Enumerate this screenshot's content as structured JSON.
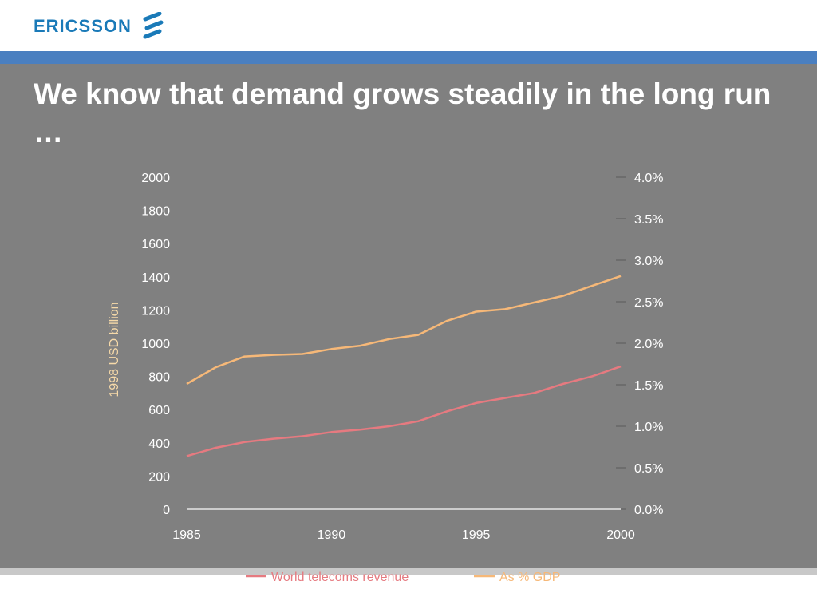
{
  "brand": {
    "name": "ERICSSON",
    "icon": "ericsson-logo-icon",
    "color": "#1a7ab8"
  },
  "slide": {
    "title": "We know that demand grows steadily in the long run …",
    "background": "#808080",
    "accent_bar": "#4a7fc0"
  },
  "chart_data": {
    "type": "line",
    "title": "",
    "xlabel": "",
    "ylabel": "1998 USD billion",
    "y2label": "",
    "x": [
      1985,
      1986,
      1987,
      1988,
      1989,
      1990,
      1991,
      1992,
      1993,
      1994,
      1995,
      1996,
      1997,
      1998,
      1999,
      2000
    ],
    "xticks": [
      "1985",
      "1990",
      "1995",
      "2000"
    ],
    "ylim": [
      0,
      2000
    ],
    "yticks": [
      "0",
      "200",
      "400",
      "600",
      "800",
      "1000",
      "1200",
      "1400",
      "1600",
      "1800",
      "2000"
    ],
    "y2lim": [
      0,
      4.0
    ],
    "y2ticks": [
      "0.0%",
      "0.5%",
      "1.0%",
      "1.5%",
      "2.0%",
      "2.5%",
      "3.0%",
      "3.5%",
      "4.0%"
    ],
    "grid": false,
    "legend_position": "bottom",
    "series": [
      {
        "name": "World telecoms revenue",
        "axis": "left",
        "color": "#e67a80",
        "values": [
          320,
          370,
          405,
          425,
          440,
          465,
          480,
          500,
          530,
          590,
          640,
          670,
          700,
          755,
          800,
          860
        ]
      },
      {
        "name": "As % GDP",
        "axis": "right",
        "color": "#f6b878",
        "values": [
          1.51,
          1.71,
          1.84,
          1.86,
          1.87,
          1.93,
          1.97,
          2.05,
          2.1,
          2.27,
          2.38,
          2.41,
          2.49,
          2.57,
          2.69,
          2.81
        ]
      }
    ]
  }
}
